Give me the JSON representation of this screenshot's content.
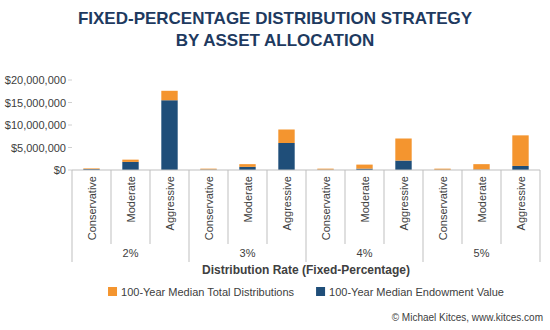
{
  "chart_data": {
    "type": "bar",
    "stacked": true,
    "grid": false,
    "legend": "bottom",
    "title": "FIXED-PERCENTAGE DISTRIBUTION STRATEGY\nBY ASSET ALLOCATION",
    "x_label": "Distribution Rate (Fixed-Percentage)",
    "categories": [
      "Conservative",
      "Moderate",
      "Aggressive",
      "Conservative",
      "Moderate",
      "Aggressive",
      "Conservative",
      "Moderate",
      "Aggressive",
      "Conservative",
      "Moderate",
      "Aggressive"
    ],
    "groups": [
      "2%",
      "3%",
      "4%",
      "5%"
    ],
    "series": [
      {
        "name": "100-Year Median Endowment Value",
        "color": "#1f4e79",
        "values": [
          200000,
          1800000,
          15500000,
          100000,
          700000,
          6000000,
          50000,
          300000,
          2100000,
          20000,
          100000,
          900000
        ]
      },
      {
        "name": "100-Year Median Total Distributions",
        "color": "#f4952f",
        "values": [
          150000,
          500000,
          2100000,
          200000,
          600000,
          3000000,
          250000,
          900000,
          4900000,
          280000,
          1200000,
          6800000
        ]
      }
    ],
    "ylim": [
      0,
      20000000
    ],
    "yticks": [
      {
        "value": 0,
        "label": "$0"
      },
      {
        "value": 5000000,
        "label": "$5,000,000"
      },
      {
        "value": 10000000,
        "label": "$10,000,000"
      },
      {
        "value": 15000000,
        "label": "$15,000,000"
      },
      {
        "value": 20000000,
        "label": "$20,000,000"
      }
    ],
    "source": "© Michael Kitces, www.kitces.com"
  }
}
